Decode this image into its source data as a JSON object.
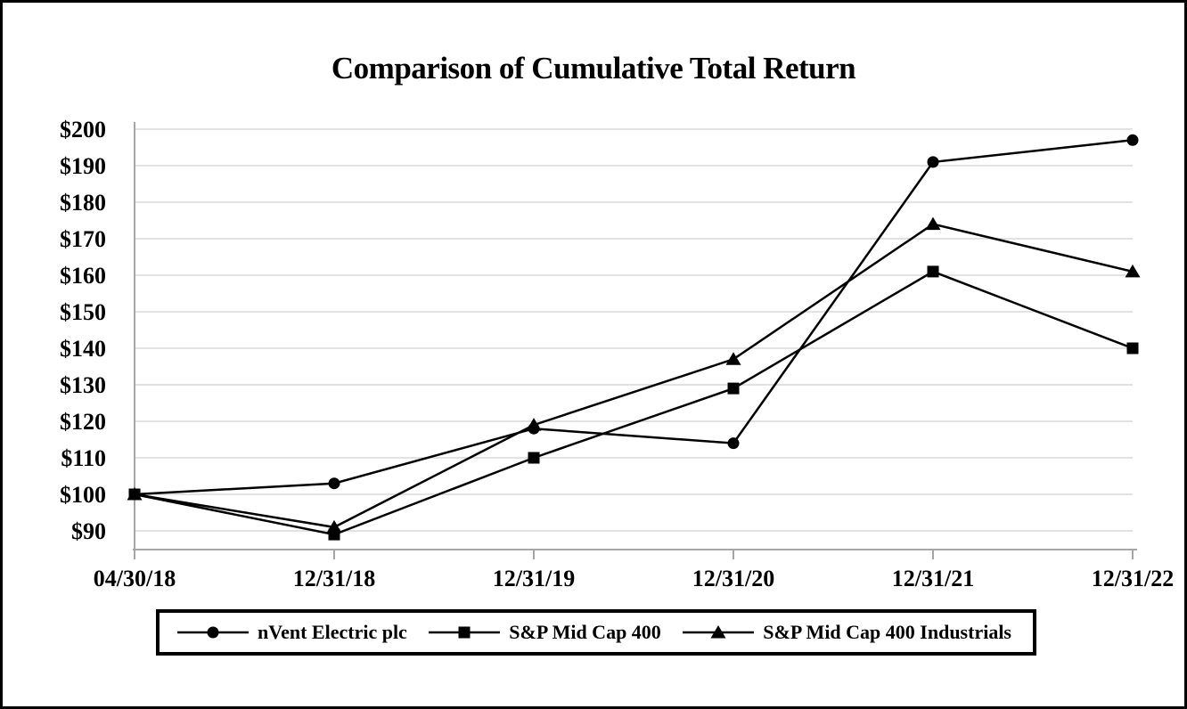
{
  "frame": {
    "background": "#ffffff",
    "border_color": "#000000"
  },
  "chart_data": {
    "type": "line",
    "title": "Comparison of Cumulative Total Return",
    "categories": [
      "04/30/18",
      "12/31/18",
      "12/31/19",
      "12/31/20",
      "12/31/21",
      "12/31/22"
    ],
    "series": [
      {
        "name": "nVent Electric plc",
        "marker": "circle",
        "color": "#000000",
        "values": [
          100,
          103,
          118,
          114,
          191,
          197
        ]
      },
      {
        "name": "S&P Mid Cap 400",
        "marker": "square",
        "color": "#000000",
        "values": [
          100,
          89,
          110,
          129,
          161,
          140
        ]
      },
      {
        "name": "S&P Mid Cap 400 Industrials",
        "marker": "triangle",
        "color": "#000000",
        "values": [
          100,
          91,
          119,
          137,
          174,
          161
        ]
      }
    ],
    "y_ticks": [
      200,
      190,
      180,
      170,
      160,
      150,
      140,
      130,
      120,
      110,
      100,
      90
    ],
    "y_tick_labels": [
      "$200",
      "$190",
      "$180",
      "$170",
      "$160",
      "$150",
      "$140",
      "$130",
      "$120",
      "$110",
      "$100",
      "$90"
    ],
    "y_tick_prefix": "$",
    "ylim": [
      90,
      200
    ],
    "xlabel": "",
    "ylabel": "",
    "grid": true,
    "legend_position": "bottom",
    "colors": {
      "series": "#000000",
      "gridline": "#d9d9d9",
      "axis": "#a6a6a6",
      "text": "#000000"
    }
  }
}
